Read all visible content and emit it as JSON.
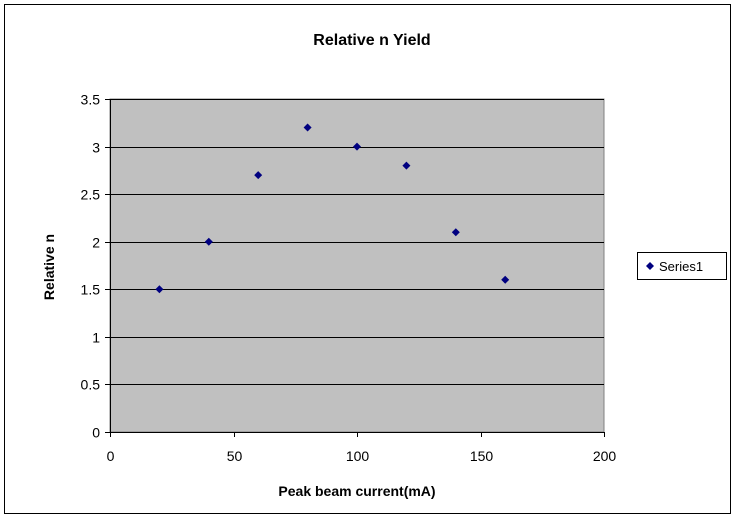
{
  "chart_data": {
    "type": "scatter",
    "title": "Relative n Yield",
    "xlabel": "Peak beam current(mA)",
    "ylabel": "Relative n",
    "xlim": [
      0,
      200
    ],
    "ylim": [
      0,
      3.5
    ],
    "x_ticks": [
      "0",
      "50",
      "100",
      "150",
      "200"
    ],
    "y_ticks": [
      "0",
      "0.5",
      "1",
      "1.5",
      "2",
      "2.5",
      "3",
      "3.5"
    ],
    "grid": true,
    "legend_position": "right",
    "series": [
      {
        "name": "Series1",
        "color": "#000080",
        "marker": "diamond",
        "x": [
          20,
          40,
          60,
          80,
          100,
          120,
          140,
          160
        ],
        "y": [
          1.5,
          2.0,
          2.7,
          3.2,
          3.0,
          2.8,
          2.1,
          1.6
        ]
      }
    ],
    "plot_background": "#c0c0c0"
  }
}
